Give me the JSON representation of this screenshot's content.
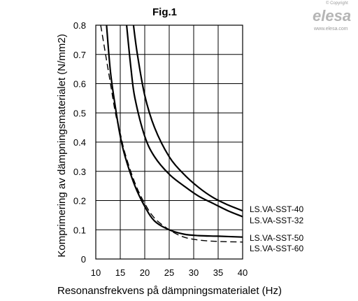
{
  "chart_data": {
    "type": "line",
    "title": "Fig.1",
    "xlabel": "Resonansfrekvens på dämpningsmaterialet (Hz)",
    "ylabel": "Komprimering av dämpningsmaterialet (N/mm2)",
    "xlim": [
      10,
      40
    ],
    "ylim": [
      0,
      0.8
    ],
    "x_ticks": [
      "10",
      "15",
      "20",
      "25",
      "30",
      "35",
      "40"
    ],
    "y_ticks": [
      "0",
      "0.1",
      "0.2",
      "0.3",
      "0.4",
      "0.5",
      "0.6",
      "0.7",
      "0.8"
    ],
    "grid": true,
    "series": [
      {
        "name": "LS.VA-SST-40",
        "style": "solid",
        "color": "#000000",
        "x": [
          17.7,
          18.5,
          20,
          22,
          25,
          28,
          31,
          34,
          37,
          40
        ],
        "y": [
          0.8,
          0.7,
          0.56,
          0.45,
          0.35,
          0.29,
          0.245,
          0.21,
          0.185,
          0.165
        ]
      },
      {
        "name": "LS.VA-SST-32",
        "style": "solid",
        "color": "#000000",
        "x": [
          16.3,
          17.2,
          18,
          20,
          22,
          25,
          28,
          31,
          34,
          37,
          40
        ],
        "y": [
          0.8,
          0.65,
          0.55,
          0.42,
          0.35,
          0.29,
          0.25,
          0.215,
          0.19,
          0.165,
          0.145
        ]
      },
      {
        "name": "LS.VA-SST-50",
        "style": "solid",
        "color": "#000000",
        "x": [
          12.2,
          13,
          14,
          15,
          16,
          18,
          20,
          22,
          25,
          28,
          31,
          35,
          40
        ],
        "y": [
          0.8,
          0.64,
          0.52,
          0.42,
          0.35,
          0.25,
          0.18,
          0.13,
          0.1,
          0.085,
          0.08,
          0.078,
          0.075
        ]
      },
      {
        "name": "LS.VA-SST-60",
        "style": "dashed",
        "color": "#000000",
        "x": [
          11,
          12,
          13,
          14,
          15,
          16,
          18,
          20,
          22,
          25,
          28,
          31,
          35,
          40
        ],
        "y": [
          0.8,
          0.7,
          0.6,
          0.5,
          0.43,
          0.36,
          0.26,
          0.19,
          0.14,
          0.1,
          0.075,
          0.065,
          0.06,
          0.058
        ]
      }
    ]
  },
  "logo": {
    "copyright": "© Copyright",
    "brand": "elesa",
    "url": "www.elesa.com"
  }
}
